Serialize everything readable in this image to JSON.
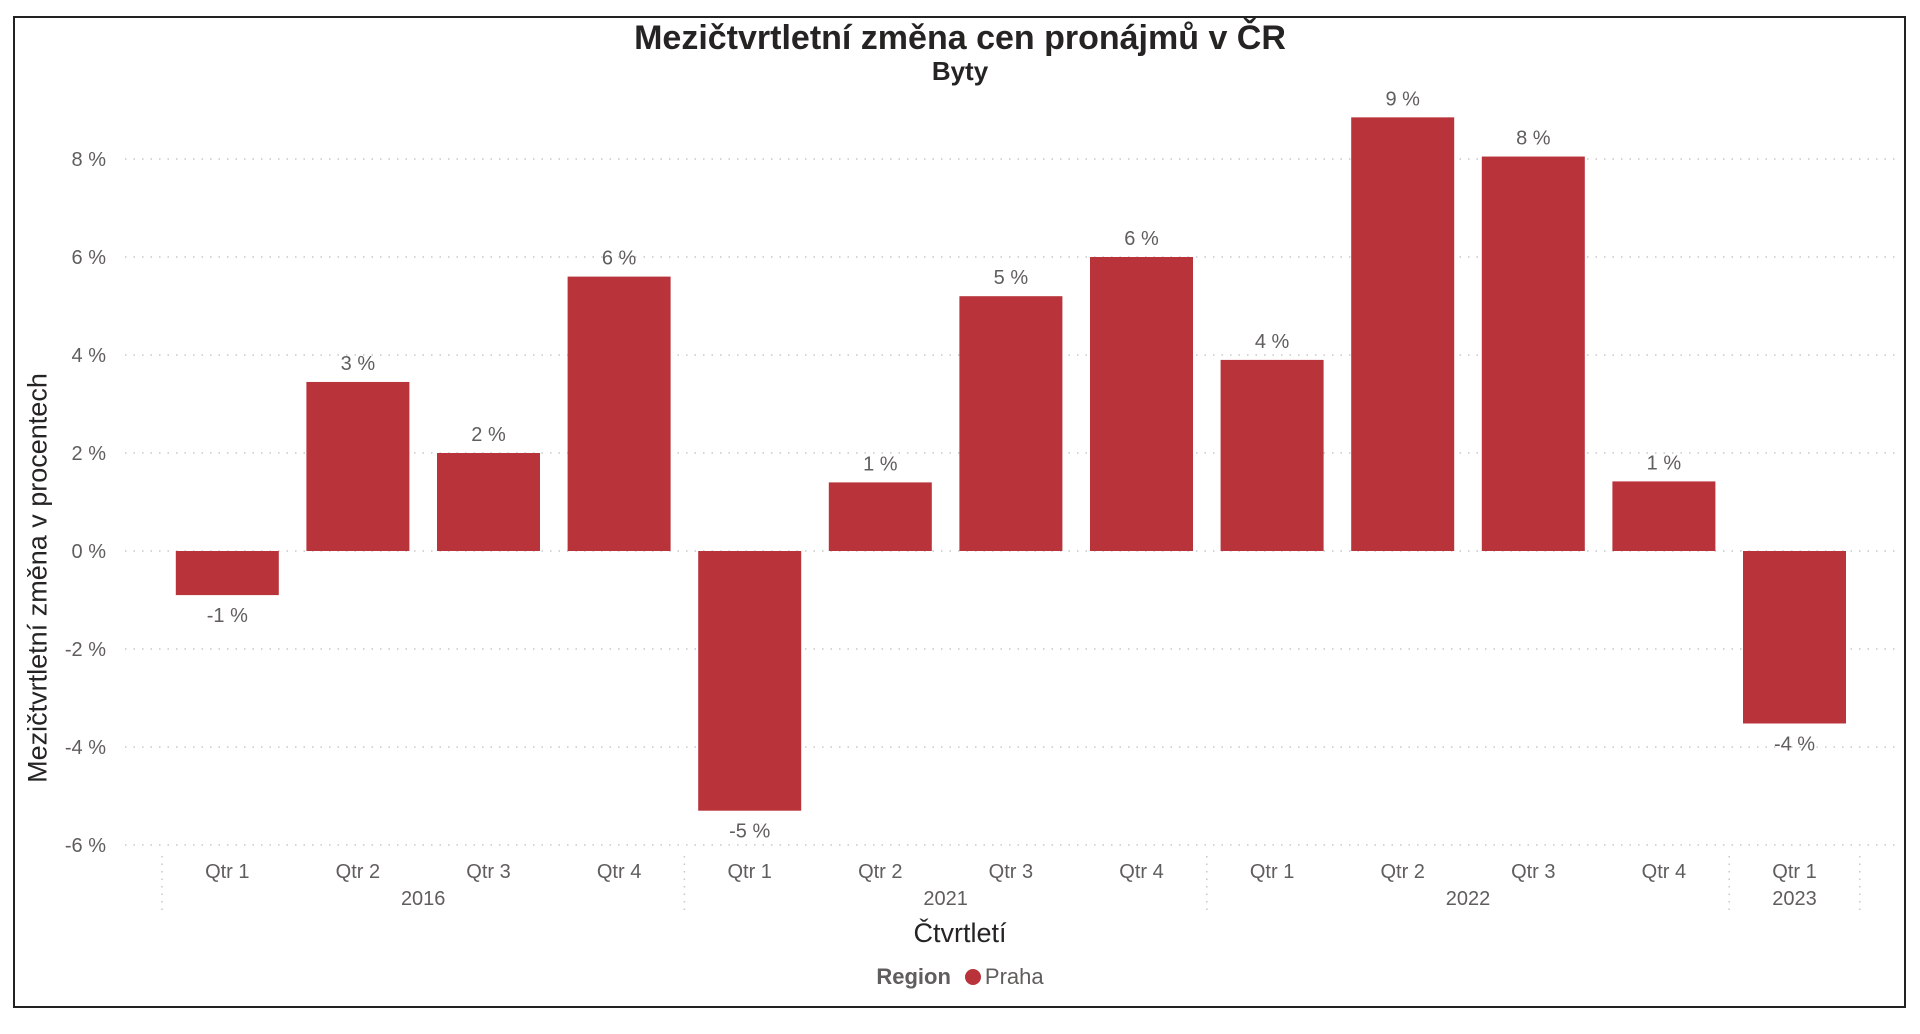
{
  "chart_data": {
    "type": "bar",
    "title": "Mezičtvrtletní změna cen pronájmů v ČR",
    "subtitle": "Byty",
    "xlabel": "Čtvrtletí",
    "ylabel": "Mezičtvrtletní změna v procentech",
    "ylim": [
      -6,
      9
    ],
    "yticks": [
      -6,
      -4,
      -2,
      0,
      2,
      4,
      6,
      8
    ],
    "ytick_suffix": " %",
    "grid": "horizontal-dotted",
    "legend_placement": "bottom-center",
    "legend": {
      "title": "Region",
      "entries": [
        "Praha"
      ]
    },
    "groups": [
      {
        "label": "2016",
        "categories": [
          "Qtr 1",
          "Qtr 2",
          "Qtr 3",
          "Qtr 4"
        ]
      },
      {
        "label": "2021",
        "categories": [
          "Qtr 1",
          "Qtr 2",
          "Qtr 3",
          "Qtr 4"
        ]
      },
      {
        "label": "2022",
        "categories": [
          "Qtr 1",
          "Qtr 2",
          "Qtr 3",
          "Qtr 4"
        ]
      },
      {
        "label": "2023",
        "categories": [
          "Qtr 1"
        ]
      }
    ],
    "series": [
      {
        "name": "Praha",
        "color": "#b8333a",
        "values": [
          -0.9,
          3.45,
          2.0,
          5.6,
          -5.3,
          1.4,
          5.2,
          6.0,
          3.9,
          8.85,
          8.05,
          1.42,
          -3.52
        ],
        "data_labels": [
          "-1 %",
          "3 %",
          "2 %",
          "6 %",
          "-5 %",
          "1 %",
          "5 %",
          "6 %",
          "4 %",
          "9 %",
          "8 %",
          "1 %",
          "-4 %"
        ]
      }
    ]
  }
}
